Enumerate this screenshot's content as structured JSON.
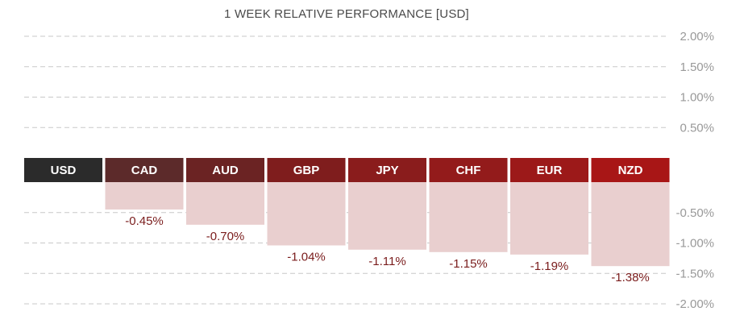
{
  "chart_data": {
    "type": "bar",
    "title": "1 WEEK RELATIVE PERFORMANCE  [USD]",
    "base": "USD",
    "categories": [
      "CAD",
      "AUD",
      "GBP",
      "JPY",
      "CHF",
      "EUR",
      "NZD"
    ],
    "values": [
      -0.45,
      -0.7,
      -1.04,
      -1.11,
      -1.15,
      -1.19,
      -1.38
    ],
    "value_labels": [
      "-0.45%",
      "-0.70%",
      "-1.04%",
      "-1.11%",
      "-1.15%",
      "-1.19%",
      "-1.38%"
    ],
    "upper_ticks": [
      {
        "value": 2.0,
        "label": "2.00%"
      },
      {
        "value": 1.5,
        "label": "1.50%"
      },
      {
        "value": 1.0,
        "label": "1.00%"
      },
      {
        "value": 0.5,
        "label": "0.50%"
      }
    ],
    "lower_ticks": [
      {
        "value": -0.5,
        "label": "-0.50%"
      },
      {
        "value": -1.0,
        "label": "-1.00%"
      },
      {
        "value": -1.5,
        "label": "-1.50%"
      },
      {
        "value": -2.0,
        "label": "-2.00%"
      }
    ],
    "ylim": [
      -2.0,
      2.0
    ],
    "grid": true,
    "colors": {
      "base_header": "#2b2b2b",
      "headers": [
        "#5c2a2a",
        "#6b2323",
        "#7f1d1d",
        "#8a1c1c",
        "#931b1b",
        "#9c1919",
        "#a81616"
      ],
      "bar_fill": "#e9cfcf",
      "value_text": "#7a1c1c",
      "grid": "#c8c8c8",
      "tick_text": "#999999"
    }
  }
}
